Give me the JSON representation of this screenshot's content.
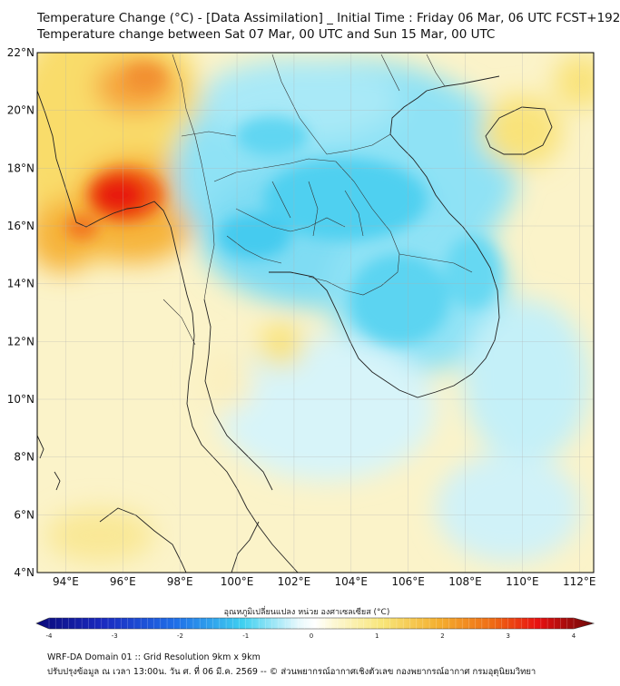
{
  "header": {
    "title_line1": "Temperature Change (°C) - [Data Assimilation] _ Initial Time : Friday 06 Mar, 06 UTC FCST+192",
    "title_line2": "Temperature change between Sat 07 Mar, 00 UTC and Sun 15 Mar, 00 UTC"
  },
  "map": {
    "lat_labels": [
      "22°N",
      "20°N",
      "18°N",
      "16°N",
      "14°N",
      "12°N",
      "10°N",
      "8°N",
      "6°N",
      "4°N"
    ],
    "lon_labels": [
      "94°E",
      "96°E",
      "98°E",
      "100°E",
      "102°E",
      "104°E",
      "106°E",
      "108°E",
      "110°E",
      "112°E"
    ],
    "lat_range": [
      4,
      22
    ],
    "lon_range": [
      93,
      112.5
    ]
  },
  "colorbar": {
    "title": "อุณหภูมิเปลี่ยนแปลง หน่วย องศาเซลเซียส (°C)",
    "ticks": [
      "-4",
      "-3",
      "-2",
      "-1",
      "0",
      "1",
      "2",
      "3",
      "4"
    ],
    "colors": {
      "cold_extreme": "#0a0a7a",
      "blue": "#1f4fe0",
      "cyan": "#3fd0f0",
      "neutral": "#ffffff",
      "yellow": "#f8e67a",
      "orange": "#f4a020",
      "red": "#e81010",
      "warm_extreme": "#6a0808"
    }
  },
  "footer": {
    "line1": "WRF-DA Domain 01 :: Grid Resolution 9km x 9km",
    "line2": "ปรับปรุงข้อมูล ณ เวลา 13:00น. วัน ศ. ที่ 06 มี.ค. 2569 -- © ส่วนพยากรณ์อากาศเชิงตัวเลข กองพยากรณ์อากาศ กรมอุตุนิยมวิทยา"
  }
}
